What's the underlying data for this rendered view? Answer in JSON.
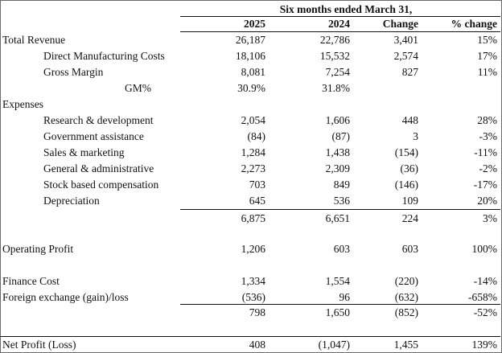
{
  "header": {
    "period": "Six months  ended March 31,",
    "col2025": "2025",
    "col2024": "2024",
    "change": "Change",
    "pct_change": "% change"
  },
  "rows": [
    {
      "label": "Total Revenue",
      "v2025": "26,187",
      "v2024": "22,786",
      "change": "3,401",
      "pct": "15%"
    },
    {
      "label": "Direct Manufacturing Costs",
      "v2025": "18,106",
      "v2024": "15,532",
      "change": "2,574",
      "pct": "17%"
    },
    {
      "label": "Gross Margin",
      "v2025": "8,081",
      "v2024": "7,254",
      "change": "827",
      "pct": "11%"
    },
    {
      "label": "GM%",
      "v2025": "30.9%",
      "v2024": "31.8%",
      "change": "",
      "pct": ""
    },
    {
      "label": "Expenses",
      "v2025": "",
      "v2024": "",
      "change": "",
      "pct": ""
    },
    {
      "label": "Research & development",
      "v2025": "2,054",
      "v2024": "1,606",
      "change": "448",
      "pct": "28%"
    },
    {
      "label": "Government assistance",
      "v2025": "(84)",
      "v2024": "(87)",
      "change": "3",
      "pct": "-3%"
    },
    {
      "label": "Sales & marketing",
      "v2025": "1,284",
      "v2024": "1,438",
      "change": "(154)",
      "pct": "-11%"
    },
    {
      "label": "General & administrative",
      "v2025": "2,273",
      "v2024": "2,309",
      "change": "(36)",
      "pct": "-2%"
    },
    {
      "label": "Stock based compensation",
      "v2025": "703",
      "v2024": "849",
      "change": "(146)",
      "pct": "-17%"
    },
    {
      "label": "Depreciation",
      "v2025": "645",
      "v2024": "536",
      "change": "109",
      "pct": "20%"
    },
    {
      "label": "",
      "v2025": "6,875",
      "v2024": "6,651",
      "change": "224",
      "pct": "3%"
    },
    {
      "label": "Operating Profit",
      "v2025": "1,206",
      "v2024": "603",
      "change": "603",
      "pct": "100%"
    },
    {
      "label": "Finance Cost",
      "v2025": "1,334",
      "v2024": "1,554",
      "change": "(220)",
      "pct": "-14%"
    },
    {
      "label": "Foreign exchange (gain)/loss",
      "v2025": "(536)",
      "v2024": "96",
      "change": "(632)",
      "pct": "-658%"
    },
    {
      "label": "",
      "v2025": "798",
      "v2024": "1,650",
      "change": "(852)",
      "pct": "-52%"
    },
    {
      "label": "Net Profit (Loss)",
      "v2025": "408",
      "v2024": "(1,047)",
      "change": "1,455",
      "pct": "139%"
    }
  ]
}
